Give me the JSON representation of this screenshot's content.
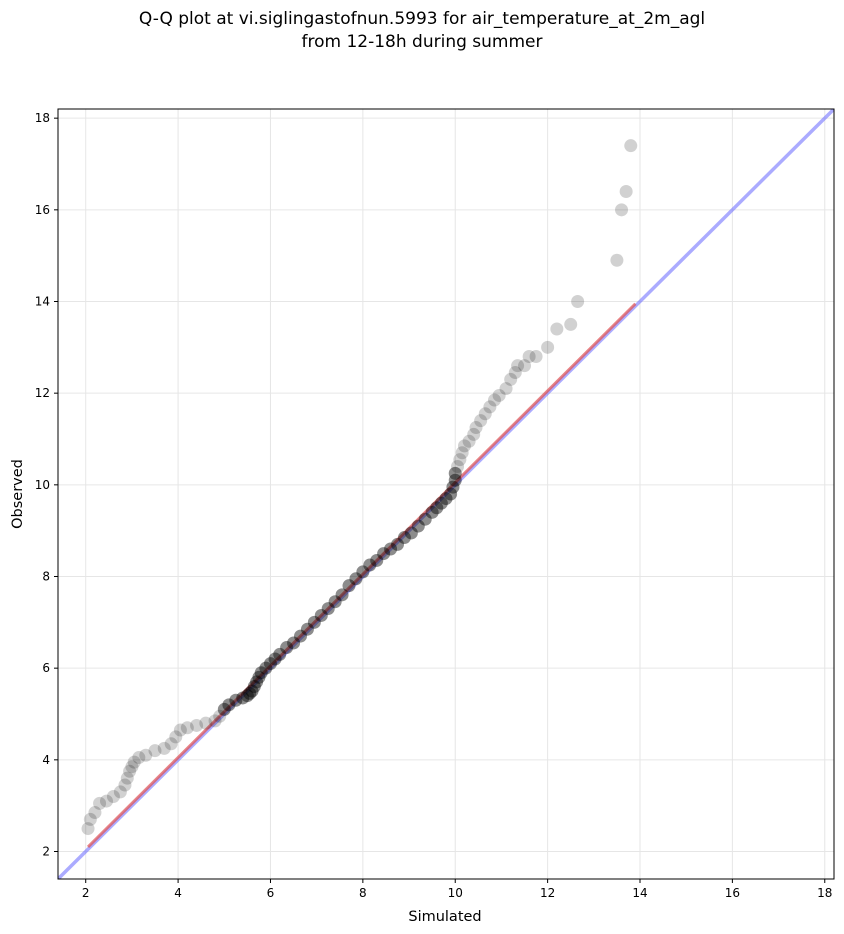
{
  "title_line1": "Q-Q plot at vi.siglingastofnun.5993 for air_temperature_at_2m_agl",
  "title_line2": "from 12-18h during summer",
  "colors": {
    "points": "#000000",
    "fit_line": "#e05050",
    "reference_line": "#6666ff",
    "grid": "#e6e6e6"
  },
  "chart_data": {
    "type": "scatter",
    "xlabel": "Simulated",
    "ylabel": "Observed",
    "xlim": [
      1.4,
      18.2
    ],
    "ylim": [
      1.4,
      18.2
    ],
    "xticks": [
      2,
      4,
      6,
      8,
      10,
      12,
      14,
      16,
      18
    ],
    "yticks": [
      2,
      4,
      6,
      8,
      10,
      12,
      14,
      16,
      18
    ],
    "grid": true,
    "reference_line": {
      "from": [
        1.4,
        1.4
      ],
      "to": [
        18.2,
        18.2
      ]
    },
    "fit_line": {
      "from": [
        2.05,
        2.1
      ],
      "to": [
        13.9,
        13.95
      ]
    },
    "points": [
      [
        2.05,
        2.5
      ],
      [
        2.1,
        2.7
      ],
      [
        2.2,
        2.85
      ],
      [
        2.3,
        3.05
      ],
      [
        2.45,
        3.1
      ],
      [
        2.6,
        3.2
      ],
      [
        2.75,
        3.3
      ],
      [
        2.85,
        3.45
      ],
      [
        2.9,
        3.6
      ],
      [
        2.95,
        3.75
      ],
      [
        3.0,
        3.85
      ],
      [
        3.05,
        3.95
      ],
      [
        3.15,
        4.05
      ],
      [
        3.3,
        4.1
      ],
      [
        3.5,
        4.2
      ],
      [
        3.7,
        4.25
      ],
      [
        3.85,
        4.35
      ],
      [
        3.95,
        4.5
      ],
      [
        4.05,
        4.65
      ],
      [
        4.2,
        4.7
      ],
      [
        4.4,
        4.75
      ],
      [
        4.6,
        4.8
      ],
      [
        4.8,
        4.85
      ],
      [
        4.9,
        4.95
      ],
      [
        5.0,
        5.1
      ],
      [
        5.1,
        5.2
      ],
      [
        5.25,
        5.3
      ],
      [
        5.4,
        5.35
      ],
      [
        5.5,
        5.4
      ],
      [
        5.55,
        5.45
      ],
      [
        5.6,
        5.5
      ],
      [
        5.65,
        5.6
      ],
      [
        5.7,
        5.7
      ],
      [
        5.75,
        5.8
      ],
      [
        5.8,
        5.9
      ],
      [
        5.9,
        6.0
      ],
      [
        6.0,
        6.1
      ],
      [
        6.1,
        6.2
      ],
      [
        6.2,
        6.3
      ],
      [
        6.35,
        6.45
      ],
      [
        6.5,
        6.55
      ],
      [
        6.65,
        6.7
      ],
      [
        6.8,
        6.85
      ],
      [
        6.95,
        7.0
      ],
      [
        7.1,
        7.15
      ],
      [
        7.25,
        7.3
      ],
      [
        7.4,
        7.45
      ],
      [
        7.55,
        7.6
      ],
      [
        7.7,
        7.8
      ],
      [
        7.85,
        7.95
      ],
      [
        8.0,
        8.1
      ],
      [
        8.15,
        8.25
      ],
      [
        8.3,
        8.35
      ],
      [
        8.45,
        8.5
      ],
      [
        8.6,
        8.6
      ],
      [
        8.75,
        8.7
      ],
      [
        8.9,
        8.85
      ],
      [
        9.05,
        8.95
      ],
      [
        9.2,
        9.1
      ],
      [
        9.35,
        9.25
      ],
      [
        9.5,
        9.4
      ],
      [
        9.6,
        9.5
      ],
      [
        9.7,
        9.6
      ],
      [
        9.8,
        9.7
      ],
      [
        9.9,
        9.8
      ],
      [
        9.95,
        9.95
      ],
      [
        10.0,
        10.1
      ],
      [
        10.0,
        10.25
      ],
      [
        10.05,
        10.4
      ],
      [
        10.1,
        10.55
      ],
      [
        10.15,
        10.7
      ],
      [
        10.2,
        10.85
      ],
      [
        10.3,
        10.95
      ],
      [
        10.4,
        11.1
      ],
      [
        10.45,
        11.25
      ],
      [
        10.55,
        11.4
      ],
      [
        10.65,
        11.55
      ],
      [
        10.75,
        11.7
      ],
      [
        10.85,
        11.85
      ],
      [
        10.95,
        11.95
      ],
      [
        11.1,
        12.1
      ],
      [
        11.2,
        12.3
      ],
      [
        11.3,
        12.45
      ],
      [
        11.35,
        12.6
      ],
      [
        11.5,
        12.6
      ],
      [
        11.6,
        12.8
      ],
      [
        11.75,
        12.8
      ],
      [
        12.0,
        13.0
      ],
      [
        12.2,
        13.4
      ],
      [
        12.5,
        13.5
      ],
      [
        12.65,
        14.0
      ],
      [
        13.5,
        14.9
      ],
      [
        13.6,
        16.0
      ],
      [
        13.7,
        16.4
      ],
      [
        13.8,
        17.4
      ]
    ]
  }
}
